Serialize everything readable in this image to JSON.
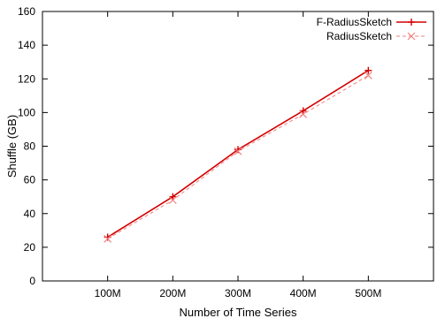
{
  "chart_data": {
    "type": "line",
    "xlabel": "Number of Time Series",
    "ylabel": "Shuffle (GB)",
    "categories": [
      "100M",
      "200M",
      "300M",
      "400M",
      "500M"
    ],
    "ylim": [
      0,
      160
    ],
    "yticks": [
      0,
      20,
      40,
      60,
      80,
      100,
      120,
      140,
      160
    ],
    "grid": false,
    "legend_position": "top-right",
    "series": [
      {
        "name": "F-RadiusSketch",
        "values": [
          26,
          50,
          78,
          101,
          125
        ],
        "color": "#d40000",
        "marker": "plus",
        "dash": "solid"
      },
      {
        "name": "RadiusSketch",
        "values": [
          25,
          48,
          77,
          99,
          122
        ],
        "color": "#f08080",
        "marker": "cross",
        "dash": "dashed"
      }
    ]
  }
}
